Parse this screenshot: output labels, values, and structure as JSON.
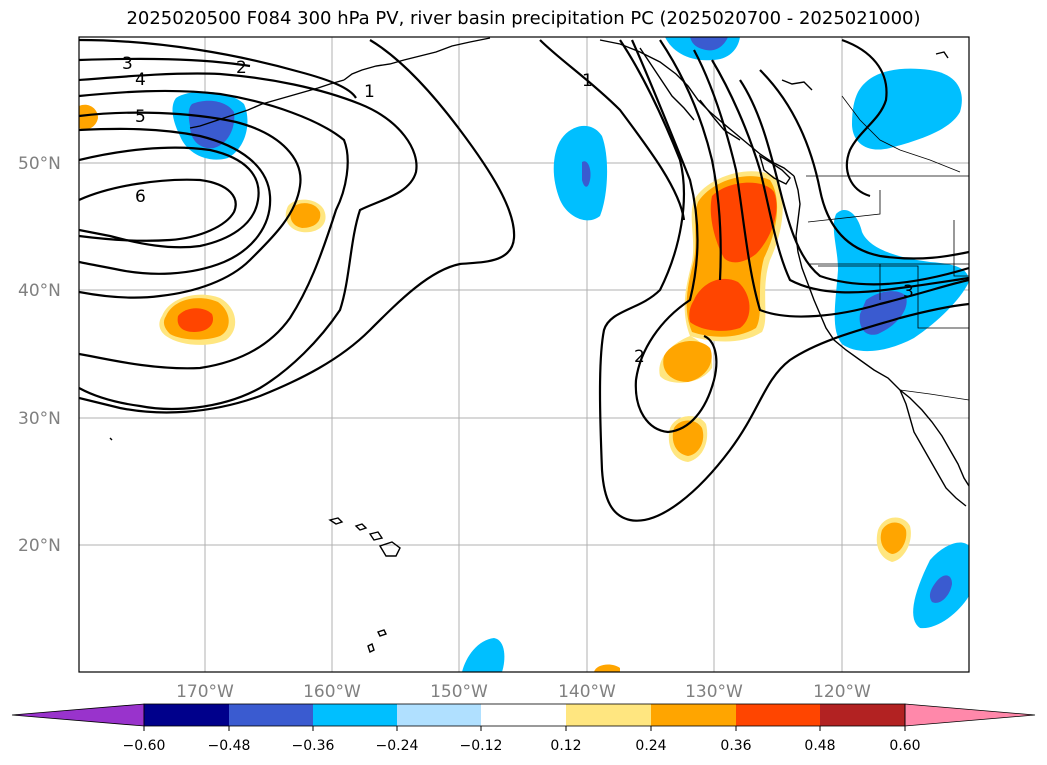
{
  "title": "2025020500 F084 300 hPa PV, river basin precipitation PC (2025020700 - 2025021000)",
  "map": {
    "lat_labels": [
      "50°N",
      "40°N",
      "30°N",
      "20°N"
    ],
    "lon_labels": [
      "170°W",
      "160°W",
      "150°W",
      "140°W",
      "130°W",
      "120°W"
    ],
    "gridlines": true
  },
  "contour_labels": [
    "3",
    "2",
    "4",
    "1",
    "5",
    "6",
    "1",
    "2",
    "3"
  ],
  "colorbar": {
    "ticks": [
      "−0.60",
      "−0.48",
      "−0.36",
      "−0.24",
      "−0.12",
      "0.12",
      "0.24",
      "0.36",
      "0.48",
      "0.60"
    ],
    "colors": {
      "lt_-0.60": "#9933cc",
      "-0.60_-0.48": "#00008b",
      "-0.48_-0.36": "#3a5bd0",
      "-0.36_-0.24": "#00bfff",
      "-0.24_-0.12": "#b0e0ff",
      "-0.12_0.12": "#ffffff",
      "0.12_0.24": "#ffe680",
      "0.24_0.36": "#ffa500",
      "0.36_0.48": "#ff4500",
      "0.48_0.60": "#b22222",
      "gt_0.60": "#ff88aa"
    },
    "extend": "both"
  }
}
